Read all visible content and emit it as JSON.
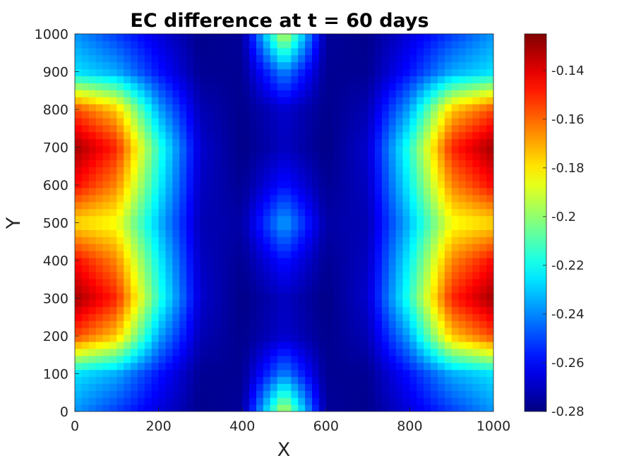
{
  "chart_data": {
    "type": "heatmap",
    "title": "EC difference at t = 60 days",
    "xlabel": "X",
    "ylabel": "Y",
    "xlim": [
      0,
      1000
    ],
    "ylim": [
      0,
      1000
    ],
    "x_ticks": [
      0,
      200,
      400,
      600,
      800,
      1000
    ],
    "y_ticks": [
      0,
      100,
      200,
      300,
      400,
      500,
      600,
      700,
      800,
      900,
      1000
    ],
    "x_tick_labels": [
      "0",
      "200",
      "400",
      "600",
      "800",
      "1000"
    ],
    "y_tick_labels": [
      "0",
      "100",
      "200",
      "300",
      "400",
      "500",
      "600",
      "700",
      "800",
      "900",
      "1000"
    ],
    "colormap": "jet",
    "colorbar": {
      "clim": [
        -0.28,
        -0.125
      ],
      "ticks": [
        -0.28,
        -0.26,
        -0.24,
        -0.22,
        -0.2,
        -0.18,
        -0.16,
        -0.14
      ],
      "tick_labels": [
        "-0.28",
        "-0.26",
        "-0.24",
        "-0.22",
        "-0.2",
        "-0.18",
        "-0.16",
        "-0.14"
      ],
      "placement": "right"
    },
    "x": [
      0,
      100,
      200,
      300,
      400,
      500,
      600,
      700,
      800,
      900,
      1000
    ],
    "y": [
      0,
      100,
      200,
      300,
      400,
      500,
      600,
      700,
      800,
      900,
      1000
    ],
    "z": [
      [
        -0.238,
        -0.252,
        -0.266,
        -0.278,
        -0.276,
        -0.19,
        -0.276,
        -0.278,
        -0.266,
        -0.252,
        -0.238
      ],
      [
        -0.226,
        -0.235,
        -0.258,
        -0.277,
        -0.277,
        -0.24,
        -0.277,
        -0.277,
        -0.258,
        -0.235,
        -0.226
      ],
      [
        -0.155,
        -0.175,
        -0.235,
        -0.272,
        -0.278,
        -0.268,
        -0.278,
        -0.272,
        -0.235,
        -0.175,
        -0.155
      ],
      [
        -0.13,
        -0.15,
        -0.215,
        -0.268,
        -0.279,
        -0.27,
        -0.279,
        -0.268,
        -0.215,
        -0.15,
        -0.13
      ],
      [
        -0.145,
        -0.165,
        -0.222,
        -0.27,
        -0.277,
        -0.258,
        -0.277,
        -0.27,
        -0.222,
        -0.165,
        -0.145
      ],
      [
        -0.178,
        -0.185,
        -0.232,
        -0.272,
        -0.274,
        -0.235,
        -0.274,
        -0.272,
        -0.232,
        -0.185,
        -0.178
      ],
      [
        -0.145,
        -0.165,
        -0.222,
        -0.27,
        -0.277,
        -0.258,
        -0.277,
        -0.27,
        -0.222,
        -0.165,
        -0.145
      ],
      [
        -0.13,
        -0.15,
        -0.215,
        -0.268,
        -0.279,
        -0.27,
        -0.279,
        -0.268,
        -0.215,
        -0.15,
        -0.13
      ],
      [
        -0.155,
        -0.175,
        -0.235,
        -0.272,
        -0.278,
        -0.268,
        -0.278,
        -0.272,
        -0.235,
        -0.175,
        -0.155
      ],
      [
        -0.226,
        -0.235,
        -0.258,
        -0.277,
        -0.277,
        -0.24,
        -0.277,
        -0.277,
        -0.258,
        -0.235,
        -0.226
      ],
      [
        -0.238,
        -0.252,
        -0.266,
        -0.278,
        -0.276,
        -0.19,
        -0.276,
        -0.278,
        -0.266,
        -0.252,
        -0.238
      ]
    ]
  }
}
